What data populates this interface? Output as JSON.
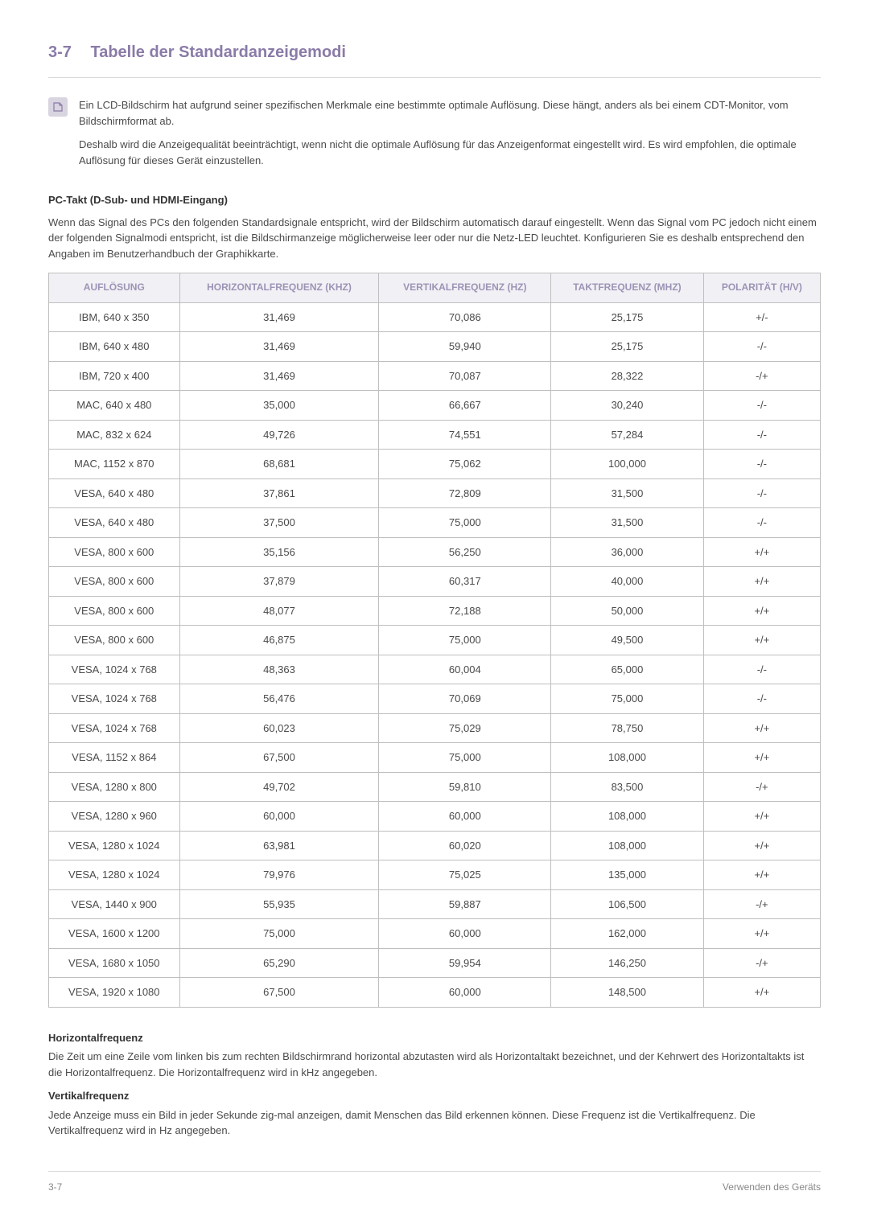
{
  "header": {
    "number": "3-7",
    "title": "Tabelle der Standardanzeigemodi"
  },
  "note": {
    "p1": "Ein LCD-Bildschirm hat aufgrund seiner spezifischen Merkmale eine bestimmte optimale Auflösung. Diese hängt, anders als bei einem CDT-Monitor, vom Bildschirmformat ab.",
    "p2": "Deshalb wird die Anzeigequalität beeinträchtigt, wenn nicht die optimale Auflösung für das Anzeigenformat eingestellt wird. Es wird empfohlen, die optimale Auflösung für dieses Gerät einzustellen."
  },
  "pc_takt": {
    "heading": "PC-Takt (D-Sub- und HDMI-Eingang)",
    "body": "Wenn das Signal des PCs den folgenden Standardsignale entspricht, wird der Bildschirm automatisch darauf eingestellt. Wenn das Signal vom PC jedoch nicht einem der folgenden Signalmodi entspricht, ist die Bildschirmanzeige möglicherweise leer oder nur die Netz-LED leuchtet. Konfigurieren Sie es deshalb entsprechend den Angaben im Benutzerhandbuch der Graphikkarte."
  },
  "table": {
    "columns": [
      "AUFLÖSUNG",
      "HORIZONTALFREQUENZ (KHZ)",
      "VERTIKALFREQUENZ (HZ)",
      "TAKTFREQUENZ (MHZ)",
      "POLARITÄT (H/V)"
    ],
    "rows": [
      [
        "IBM, 640 x 350",
        "31,469",
        "70,086",
        "25,175",
        "+/-"
      ],
      [
        "IBM, 640 x 480",
        "31,469",
        "59,940",
        "25,175",
        "-/-"
      ],
      [
        "IBM, 720 x 400",
        "31,469",
        "70,087",
        "28,322",
        "-/+"
      ],
      [
        "MAC, 640 x 480",
        "35,000",
        "66,667",
        "30,240",
        "-/-"
      ],
      [
        "MAC, 832 x 624",
        "49,726",
        "74,551",
        "57,284",
        "-/-"
      ],
      [
        "MAC, 1152 x 870",
        "68,681",
        "75,062",
        "100,000",
        "-/-"
      ],
      [
        "VESA, 640 x 480",
        "37,861",
        "72,809",
        "31,500",
        "-/-"
      ],
      [
        "VESA, 640 x 480",
        "37,500",
        "75,000",
        "31,500",
        "-/-"
      ],
      [
        "VESA, 800 x 600",
        "35,156",
        "56,250",
        "36,000",
        "+/+"
      ],
      [
        "VESA, 800 x 600",
        "37,879",
        "60,317",
        "40,000",
        "+/+"
      ],
      [
        "VESA, 800 x 600",
        "48,077",
        "72,188",
        "50,000",
        "+/+"
      ],
      [
        "VESA, 800 x 600",
        "46,875",
        "75,000",
        "49,500",
        "+/+"
      ],
      [
        "VESA, 1024 x 768",
        "48,363",
        "60,004",
        "65,000",
        "-/-"
      ],
      [
        "VESA, 1024 x 768",
        "56,476",
        "70,069",
        "75,000",
        "-/-"
      ],
      [
        "VESA, 1024 x 768",
        "60,023",
        "75,029",
        "78,750",
        "+/+"
      ],
      [
        "VESA, 1152 x 864",
        "67,500",
        "75,000",
        "108,000",
        "+/+"
      ],
      [
        "VESA, 1280 x 800",
        "49,702",
        "59,810",
        "83,500",
        "-/+"
      ],
      [
        "VESA, 1280 x 960",
        "60,000",
        "60,000",
        "108,000",
        "+/+"
      ],
      [
        "VESA, 1280 x 1024",
        "63,981",
        "60,020",
        "108,000",
        "+/+"
      ],
      [
        "VESA, 1280 x 1024",
        "79,976",
        "75,025",
        "135,000",
        "+/+"
      ],
      [
        "VESA, 1440 x 900",
        "55,935",
        "59,887",
        "106,500",
        "-/+"
      ],
      [
        "VESA, 1600 x 1200",
        "75,000",
        "60,000",
        "162,000",
        "+/+"
      ],
      [
        "VESA, 1680 x 1050",
        "65,290",
        "59,954",
        "146,250",
        "-/+"
      ],
      [
        "VESA, 1920 x 1080",
        "67,500",
        "60,000",
        "148,500",
        "+/+"
      ]
    ]
  },
  "defs": {
    "h_head": "Horizontalfrequenz",
    "h_body": "Die Zeit um eine Zeile vom linken bis zum rechten Bildschirmrand horizontal abzutasten wird als Horizontaltakt bezeichnet, und der Kehrwert des Horizontaltakts ist die Horizontalfrequenz. Die Horizontalfrequenz wird in kHz angegeben.",
    "v_head": "Vertikalfrequenz",
    "v_body": "Jede Anzeige muss ein Bild in jeder Sekunde zig-mal anzeigen, damit Menschen das Bild erkennen können. Diese Frequenz ist die Vertikalfrequenz. Die Vertikalfrequenz wird in Hz angegeben."
  },
  "footer": {
    "left": "3-7",
    "right": "Verwenden des Geräts"
  }
}
